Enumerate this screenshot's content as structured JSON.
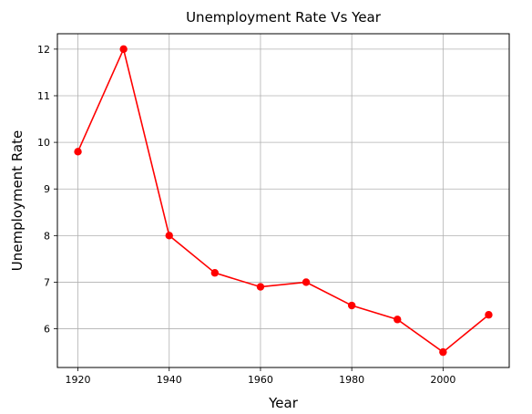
{
  "chart_data": {
    "type": "line",
    "title": "Unemployment Rate Vs Year",
    "xlabel": "Year",
    "ylabel": "Unemployment Rate",
    "x": [
      1920,
      1930,
      1940,
      1950,
      1960,
      1970,
      1980,
      1990,
      2000,
      2010
    ],
    "series": [
      {
        "values": [
          9.8,
          12.0,
          8.0,
          7.2,
          6.9,
          7.0,
          6.5,
          6.2,
          5.5,
          6.3
        ],
        "color": "#ff0000",
        "marker": "circle"
      }
    ],
    "xlim": [
      1915.5,
      2014.5
    ],
    "ylim": [
      5.17,
      12.33
    ],
    "xticks": [
      1920,
      1940,
      1960,
      1980,
      2000
    ],
    "yticks": [
      6,
      7,
      8,
      9,
      10,
      11,
      12
    ],
    "grid": true,
    "grid_color": "#b0b0b0"
  }
}
